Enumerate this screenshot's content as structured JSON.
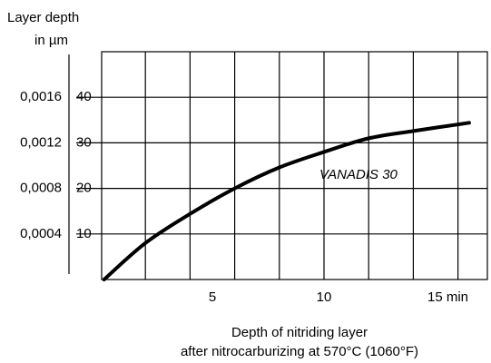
{
  "chart_data": {
    "type": "line",
    "y_axis_title": [
      "Layer depth",
      "in  µm"
    ],
    "x_axis_title": [
      "Depth of nitriding layer",
      "after nitrocarburizing at 570°C (1060°F)"
    ],
    "x": [
      0.15,
      2,
      4,
      6,
      8,
      10,
      12,
      14,
      16.5
    ],
    "series": [
      {
        "name": "VANADIS 30",
        "color": "#000000",
        "values": [
          0,
          8,
          14.4,
          20,
          24.6,
          28,
          31,
          32.6,
          34.4
        ]
      }
    ],
    "xlim": [
      0,
      17.3
    ],
    "xticks": [
      5,
      10,
      {
        "value": 15,
        "label": "15 min"
      }
    ],
    "xgrid_lines": [
      2,
      4,
      6,
      8,
      10,
      12,
      14,
      16
    ],
    "ylim": [
      0,
      50
    ],
    "yticks": [
      10,
      20,
      30,
      40
    ],
    "y2lim": [
      0,
      0.002
    ],
    "y2ticks": [
      {
        "value": 0.0004,
        "label": "0,0004"
      },
      {
        "value": 0.0008,
        "label": "0,0008"
      },
      {
        "value": 0.0012,
        "label": "0,0012"
      },
      {
        "value": 0.0016,
        "label": "0,0016"
      }
    ],
    "grid": true
  }
}
